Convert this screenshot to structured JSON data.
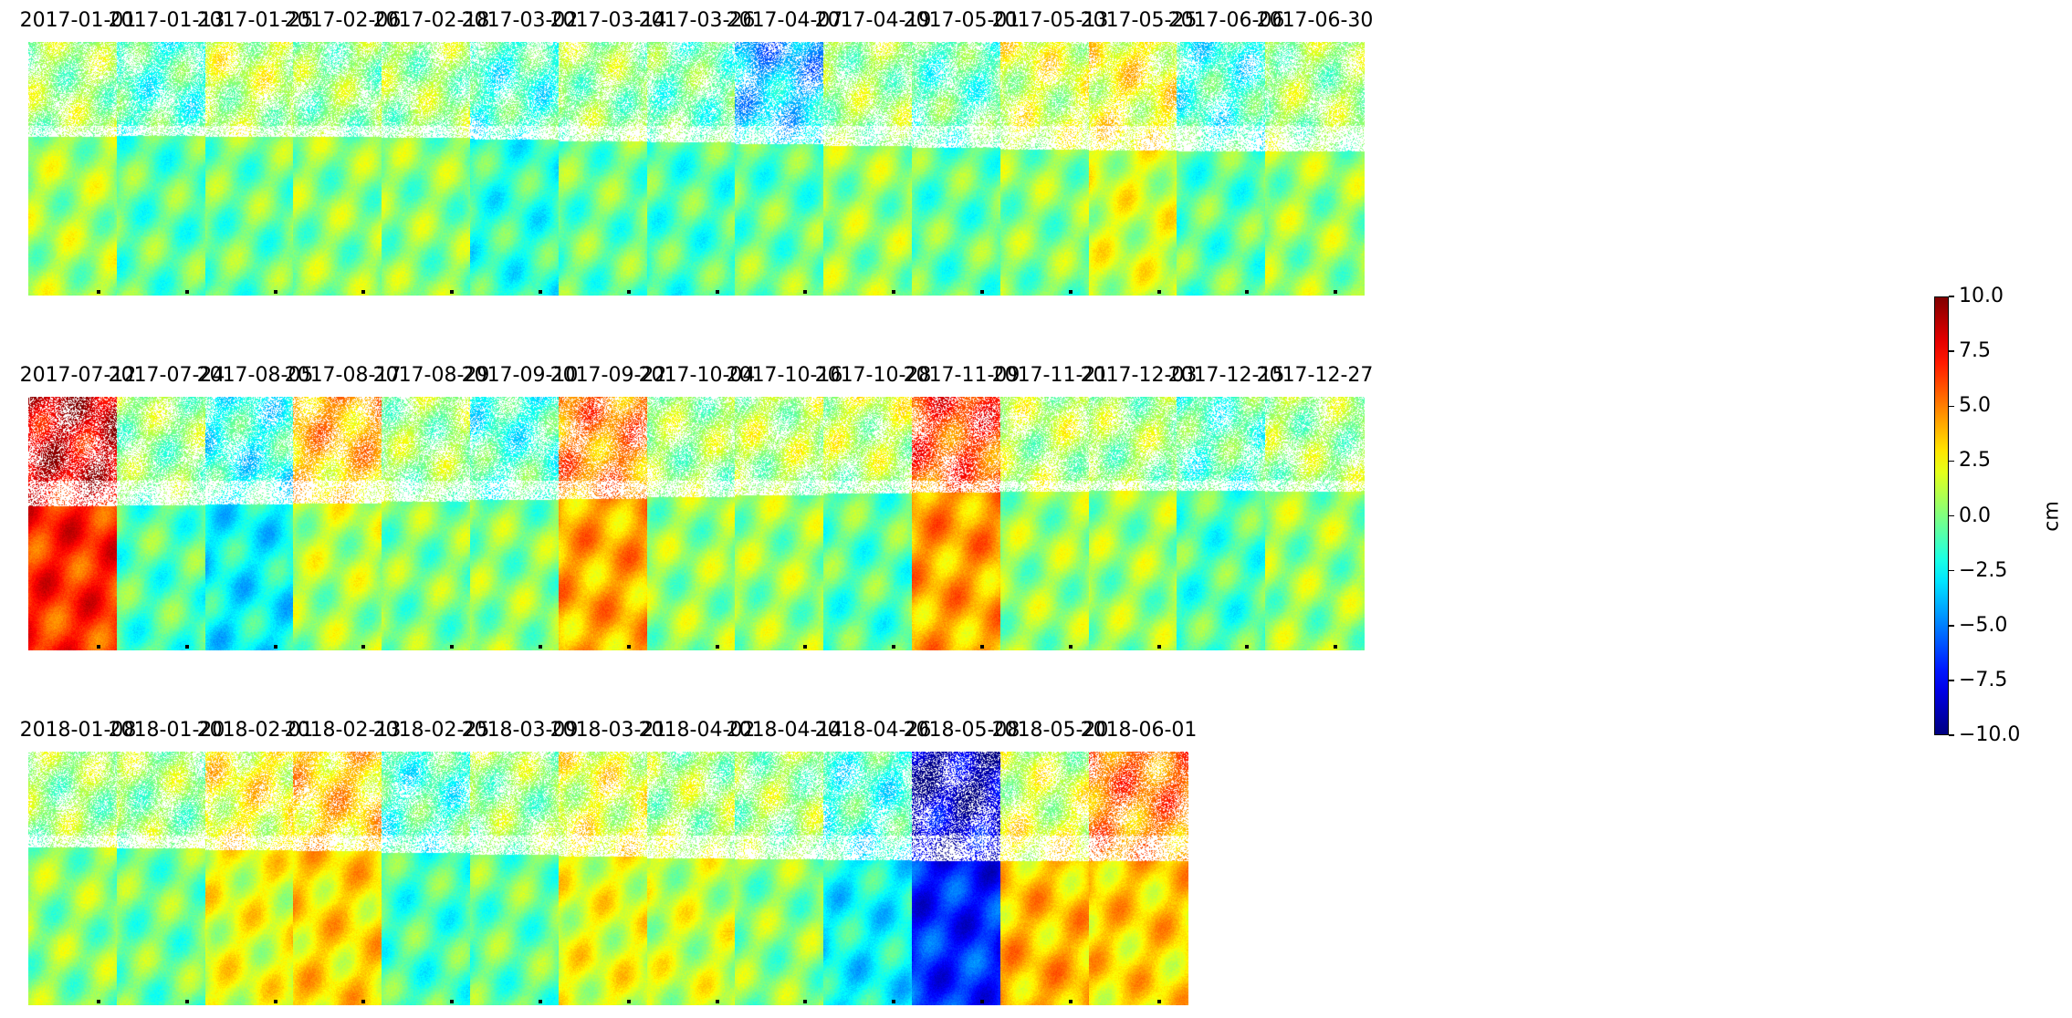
{
  "chart_data": {
    "type": "heatmap",
    "colormap": "jet",
    "layout": "3 rows of small-multiple displacement maps",
    "row_counts": [
      15,
      15,
      13
    ],
    "dates": [
      "2017-01-01",
      "2017-01-13",
      "2017-01-25",
      "2017-02-06",
      "2017-02-18",
      "2017-03-02",
      "2017-03-14",
      "2017-03-26",
      "2017-04-07",
      "2017-04-19",
      "2017-05-01",
      "2017-05-13",
      "2017-05-25",
      "2017-06-06",
      "2017-06-30",
      "2017-07-12",
      "2017-07-24",
      "2017-08-05",
      "2017-08-17",
      "2017-08-29",
      "2017-09-10",
      "2017-09-22",
      "2017-10-04",
      "2017-10-16",
      "2017-10-28",
      "2017-11-09",
      "2017-11-21",
      "2017-12-03",
      "2017-12-15",
      "2017-12-27",
      "2018-01-08",
      "2018-01-20",
      "2018-02-01",
      "2018-02-13",
      "2018-02-25",
      "2018-03-09",
      "2018-03-21",
      "2018-04-02",
      "2018-04-14",
      "2018-04-26",
      "2018-05-08",
      "2018-05-20",
      "2018-06-01"
    ],
    "approx_mean_values": {
      "top_region": [
        0.5,
        -1.5,
        1.5,
        0.2,
        0.5,
        -1.5,
        0.5,
        -0.5,
        -4.5,
        0.5,
        -1.0,
        2.0,
        2.5,
        -2.0,
        0.5,
        8.5,
        0.5,
        -2.0,
        4.5,
        0.5,
        -2.0,
        5.0,
        0.5,
        1.0,
        1.5,
        6.5,
        1.0,
        0.5,
        -1.0,
        0.5,
        0.5,
        0.5,
        2.5,
        3.5,
        -1.5,
        0.5,
        2.0,
        0.5,
        0.5,
        -1.5,
        -9.0,
        1.0,
        5.5
      ],
      "bottom_region": [
        0.8,
        -0.5,
        -0.5,
        0.3,
        0.2,
        -1.5,
        -0.5,
        -1.0,
        0.0,
        0.5,
        -0.5,
        0.0,
        1.5,
        -0.5,
        0.5,
        6.5,
        -1.0,
        -2.5,
        0.5,
        0.0,
        0.5,
        4.0,
        0.5,
        0.5,
        -1.0,
        4.0,
        0.5,
        0.5,
        -1.0,
        0.5,
        0.3,
        -0.3,
        2.0,
        3.0,
        -1.0,
        -0.5,
        2.0,
        1.5,
        0.2,
        -2.5,
        -6.5,
        4.0,
        3.0
      ]
    },
    "colorbar": {
      "label": "cm",
      "range": [
        -10.0,
        10.0
      ],
      "ticks": [
        10.0,
        7.5,
        5.0,
        2.5,
        0.0,
        -2.5,
        -5.0,
        -7.5,
        -10.0
      ],
      "tick_labels": [
        "10.0",
        "7.5",
        "5.0",
        "2.5",
        "0.0",
        "−2.5",
        "−5.0",
        "−7.5",
        "−10.0"
      ]
    }
  }
}
